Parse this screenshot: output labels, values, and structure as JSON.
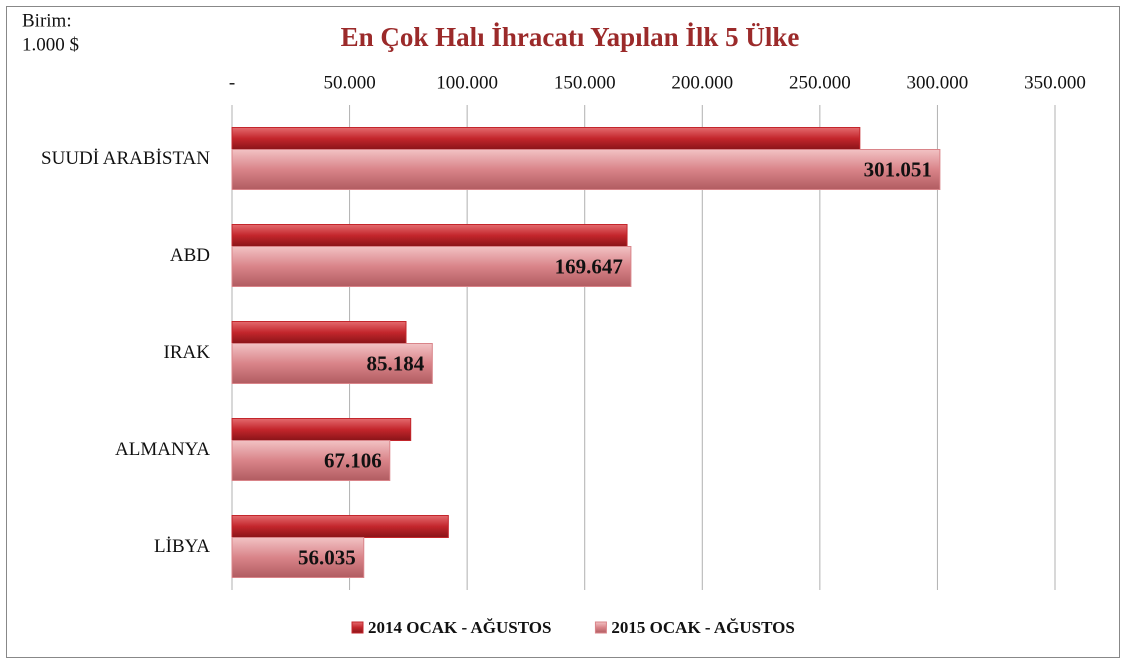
{
  "chart_data": {
    "type": "bar",
    "orientation": "horizontal",
    "title": "En Çok Halı İhracatı Yapılan İlk 5 Ülke",
    "unit_label": [
      "Birim:",
      "1.000 $"
    ],
    "categories": [
      "SUUDİ ARABİSTAN",
      "ABD",
      "IRAK",
      "ALMANYA",
      "LİBYA"
    ],
    "series": [
      {
        "name": "2014 OCAK - AĞUSTOS",
        "color": "#c3262c",
        "values": [
          267000,
          168000,
          74000,
          76000,
          92000
        ]
      },
      {
        "name": "2015 OCAK - AĞUSTOS",
        "color": "#d98489",
        "values": [
          301051,
          169647,
          85184,
          67106,
          56035
        ],
        "value_labels": [
          "301.051",
          "169.647",
          "85.184",
          "67.106",
          "56.035"
        ]
      }
    ],
    "xlim": [
      0,
      350000
    ],
    "xticks": [
      {
        "value": 0,
        "label": "-"
      },
      {
        "value": 50000,
        "label": "50.000"
      },
      {
        "value": 100000,
        "label": "100.000"
      },
      {
        "value": 150000,
        "label": "150.000"
      },
      {
        "value": 200000,
        "label": "200.000"
      },
      {
        "value": 250000,
        "label": "250.000"
      },
      {
        "value": 300000,
        "label": "300.000"
      },
      {
        "value": 350000,
        "label": "350.000"
      }
    ],
    "grid": true,
    "legend": "bottom"
  }
}
